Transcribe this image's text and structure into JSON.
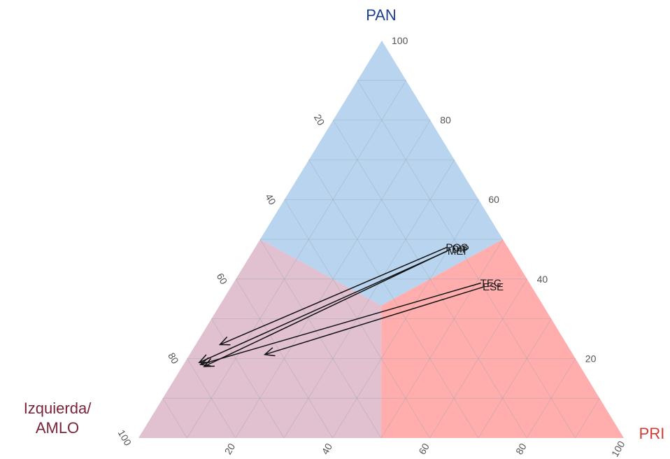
{
  "colors": {
    "pan": "#1f3f8f",
    "left": "#7a2438",
    "pri": "#d23b34",
    "region_pan": "#b8d4ee",
    "region_left": "#e1c0cf",
    "region_pri": "#ffadad",
    "grid": "#9aa3ad",
    "arrow": "#111111"
  },
  "labels": {
    "top": "PAN",
    "left_line1": "Izquierda/",
    "left_line2": "AMLO",
    "right": "PRI"
  },
  "chart_data": {
    "type": "scatter",
    "subtype": "ternary",
    "axes": {
      "top": "PAN",
      "left": "Izquierda/AMLO",
      "right": "PRI"
    },
    "ticks": [
      20,
      40,
      60,
      80,
      100
    ],
    "right_edge_ticks": [
      "100",
      "80",
      "60",
      "40",
      "20"
    ],
    "left_edge_ticks": [
      "20",
      "40",
      "60",
      "80",
      "100"
    ],
    "bottom_edge_ticks": [
      "20",
      "40",
      "60",
      "80",
      "100"
    ],
    "grid": true,
    "regions": [
      "PAN",
      "Izquierda/AMLO",
      "PRI"
    ],
    "points": [
      {
        "label": "POS",
        "from": {
          "PAN": 48,
          "PRI": 39.5,
          "Izq": 12.5
        },
        "to": {
          "PAN": 23.5,
          "PRI": 5,
          "Izq": 71.5
        }
      },
      {
        "label": "MEI",
        "from": {
          "PAN": 47,
          "PRI": 40,
          "Izq": 13
        },
        "to": {
          "PAN": 19,
          "PRI": 3,
          "Izq": 78
        }
      },
      {
        "label": "DIP",
        "from": {
          "PAN": 47.5,
          "PRI": 40.5,
          "Izq": 12
        },
        "to": {
          "PAN": 18,
          "PRI": 4.5,
          "Izq": 77.5
        }
      },
      {
        "label": "TEC",
        "from": {
          "PAN": 39,
          "PRI": 51,
          "Izq": 10
        },
        "to": {
          "PAN": 18.5,
          "PRI": 3.5,
          "Izq": 78
        }
      },
      {
        "label": "ESE",
        "from": {
          "PAN": 38,
          "PRI": 52,
          "Izq": 10
        },
        "to": {
          "PAN": 21,
          "PRI": 15.5,
          "Izq": 63.5
        }
      }
    ]
  }
}
